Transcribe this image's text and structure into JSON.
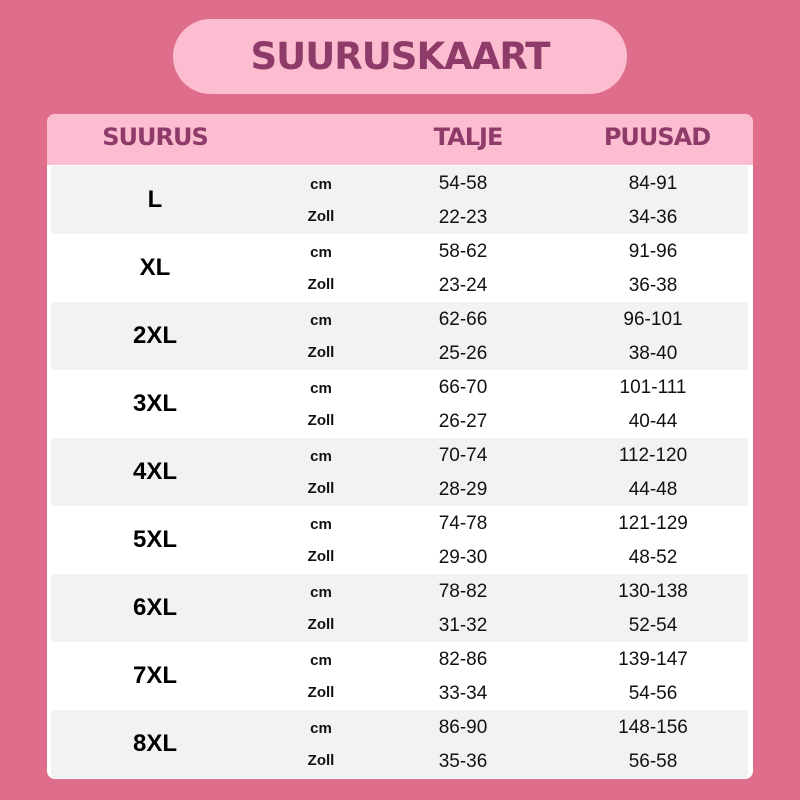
{
  "title": "SUURUSKAART",
  "headers": {
    "size": "SUURUS",
    "waist": "TALJE",
    "hips": "PUUSAD"
  },
  "colors": {
    "background": "#de6e8b",
    "header": "#fdbdd1",
    "heading_text": "#8e3b6a",
    "row_alt": "#f2f2f2"
  },
  "rows": [
    {
      "size": "L",
      "unit_cm": "cm",
      "unit_in": "Zoll",
      "waist_cm": "54-58",
      "waist_in": "22-23",
      "hips_cm": "84-91",
      "hips_in": "34-36"
    },
    {
      "size": "XL",
      "unit_cm": "cm",
      "unit_in": "Zoll",
      "waist_cm": "58-62",
      "waist_in": "23-24",
      "hips_cm": "91-96",
      "hips_in": "36-38"
    },
    {
      "size": "2XL",
      "unit_cm": "cm",
      "unit_in": "Zoll",
      "waist_cm": "62-66",
      "waist_in": "25-26",
      "hips_cm": "96-101",
      "hips_in": "38-40"
    },
    {
      "size": "3XL",
      "unit_cm": "cm",
      "unit_in": "Zoll",
      "waist_cm": "66-70",
      "waist_in": "26-27",
      "hips_cm": "101-111",
      "hips_in": "40-44"
    },
    {
      "size": "4XL",
      "unit_cm": "cm",
      "unit_in": "Zoll",
      "waist_cm": "70-74",
      "waist_in": "28-29",
      "hips_cm": "112-120",
      "hips_in": "44-48"
    },
    {
      "size": "5XL",
      "unit_cm": "cm",
      "unit_in": "Zoll",
      "waist_cm": "74-78",
      "waist_in": "29-30",
      "hips_cm": "121-129",
      "hips_in": "48-52"
    },
    {
      "size": "6XL",
      "unit_cm": "cm",
      "unit_in": "Zoll",
      "waist_cm": "78-82",
      "waist_in": "31-32",
      "hips_cm": "130-138",
      "hips_in": "52-54"
    },
    {
      "size": "7XL",
      "unit_cm": "cm",
      "unit_in": "Zoll",
      "waist_cm": "82-86",
      "waist_in": "33-34",
      "hips_cm": "139-147",
      "hips_in": "54-56"
    },
    {
      "size": "8XL",
      "unit_cm": "cm",
      "unit_in": "Zoll",
      "waist_cm": "86-90",
      "waist_in": "35-36",
      "hips_cm": "148-156",
      "hips_in": "56-58"
    }
  ]
}
